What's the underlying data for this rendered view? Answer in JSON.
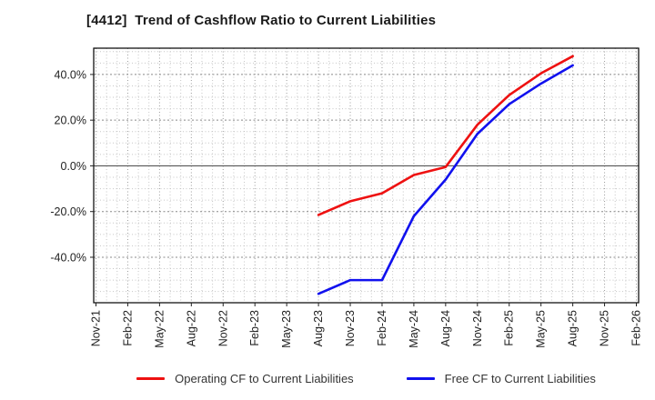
{
  "title": "[4412]  Trend of Cashflow Ratio to Current Liabilities",
  "chart_data": {
    "type": "line",
    "title": "[4412]  Trend of Cashflow Ratio to Current Liabilities",
    "xlabel": "",
    "ylabel": "",
    "categories": [
      "Nov-21",
      "Feb-22",
      "May-22",
      "Aug-22",
      "Nov-22",
      "Feb-23",
      "May-23",
      "Aug-23",
      "Nov-23",
      "Feb-24",
      "May-24",
      "Aug-24",
      "Nov-24",
      "Feb-25",
      "May-25",
      "Aug-25",
      "Nov-25",
      "Feb-26"
    ],
    "series": [
      {
        "key": "operating-cf",
        "name": "Operating CF to Current Liabilities",
        "color": "#ee1111",
        "values": [
          null,
          null,
          null,
          null,
          null,
          null,
          null,
          -21.5,
          -15.5,
          -12,
          -4,
          -0.5,
          18,
          31,
          40.5,
          48,
          null,
          null
        ]
      },
      {
        "key": "free-cf",
        "name": "Free CF to Current Liabilities",
        "color": "#1111ee",
        "values": [
          null,
          null,
          null,
          null,
          null,
          null,
          null,
          -56,
          -50,
          -50,
          -22,
          -6,
          14,
          27,
          36,
          44,
          null,
          null
        ]
      }
    ],
    "yticks": [
      {
        "value": 40,
        "label": "40.0%"
      },
      {
        "value": 20,
        "label": "20.0%"
      },
      {
        "value": 0,
        "label": "0.0%"
      },
      {
        "value": -20,
        "label": "-20.0%"
      },
      {
        "value": -40,
        "label": "-40.0%"
      }
    ],
    "ylim": [
      -59.9,
      51.5
    ],
    "grid": "major+minor, minor every 5% and monthly",
    "legend_position": "bottom"
  },
  "colors": {
    "background": "#ffffff",
    "axis_border": "#000000",
    "zero_line": "#555555",
    "major_grid": "#888888",
    "minor_grid": "#c6c6c6",
    "tick_label": "#222222"
  }
}
